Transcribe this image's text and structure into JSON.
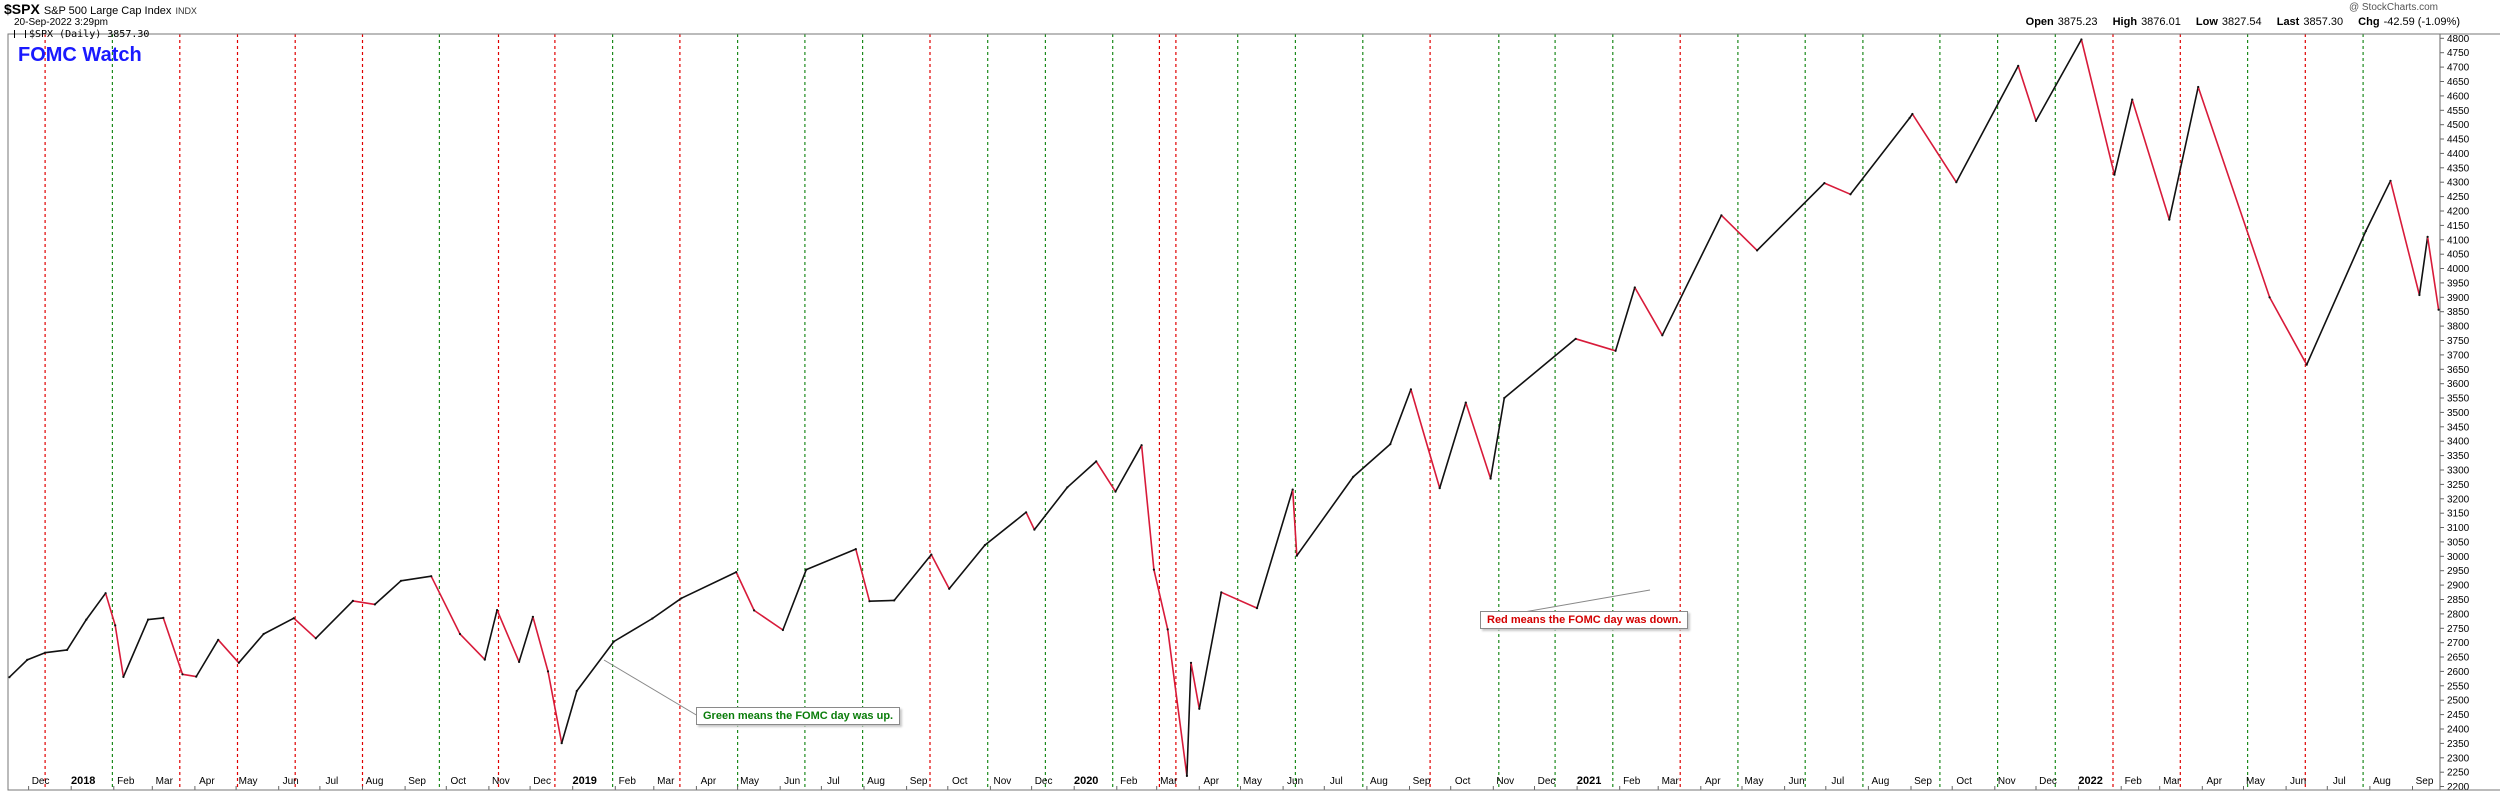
{
  "header": {
    "symbol": "$SPX",
    "name": "S&P 500 Large Cap Index",
    "exchange": "INDX",
    "datetime": "20-Sep-2022 3:29pm",
    "legend_text": "$SPX (Daily) 3857.30",
    "credit": "@ StockCharts.com",
    "ohlc": {
      "open_label": "Open",
      "open": "3875.23",
      "high_label": "High",
      "high": "3876.01",
      "low_label": "Low",
      "low": "3827.54",
      "last_label": "Last",
      "last": "3857.30",
      "chg_label": "Chg",
      "chg": "-42.59 (-1.09%)"
    }
  },
  "annotations": {
    "title": "FOMC Watch",
    "green_note": "Green means the FOMC day was up.",
    "red_note": "Red means the FOMC day was down."
  },
  "colors": {
    "up_line": "#1c8a1c",
    "down_line": "#e00000",
    "price_up": "#111111",
    "price_down": "#d81b3a",
    "grid": "#cccccc"
  },
  "chart_data": {
    "type": "line",
    "series": [
      {
        "values": [
          {
            "x": "2017-11-17",
            "y": 2580
          },
          {
            "x": "2017-11-30",
            "y": 2640
          },
          {
            "x": "2017-12-13",
            "y": 2665
          },
          {
            "x": "2017-12-29",
            "y": 2675
          },
          {
            "x": "2018-01-12",
            "y": 2780
          },
          {
            "x": "2018-01-26",
            "y": 2872
          },
          {
            "x": "2018-02-02",
            "y": 2760
          },
          {
            "x": "2018-02-08",
            "y": 2581
          },
          {
            "x": "2018-02-26",
            "y": 2780
          },
          {
            "x": "2018-03-09",
            "y": 2786
          },
          {
            "x": "2018-03-23",
            "y": 2590
          },
          {
            "x": "2018-04-02",
            "y": 2582
          },
          {
            "x": "2018-04-18",
            "y": 2710
          },
          {
            "x": "2018-05-03",
            "y": 2630
          },
          {
            "x": "2018-05-21",
            "y": 2730
          },
          {
            "x": "2018-06-12",
            "y": 2785
          },
          {
            "x": "2018-06-28",
            "y": 2715
          },
          {
            "x": "2018-07-25",
            "y": 2845
          },
          {
            "x": "2018-08-10",
            "y": 2833
          },
          {
            "x": "2018-08-29",
            "y": 2915
          },
          {
            "x": "2018-09-20",
            "y": 2931
          },
          {
            "x": "2018-10-11",
            "y": 2730
          },
          {
            "x": "2018-10-29",
            "y": 2641
          },
          {
            "x": "2018-11-07",
            "y": 2813
          },
          {
            "x": "2018-11-23",
            "y": 2633
          },
          {
            "x": "2018-12-03",
            "y": 2790
          },
          {
            "x": "2018-12-14",
            "y": 2600
          },
          {
            "x": "2018-12-24",
            "y": 2351
          },
          {
            "x": "2019-01-04",
            "y": 2532
          },
          {
            "x": "2019-01-31",
            "y": 2704
          },
          {
            "x": "2019-02-28",
            "y": 2784
          },
          {
            "x": "2019-03-21",
            "y": 2854
          },
          {
            "x": "2019-04-30",
            "y": 2945
          },
          {
            "x": "2019-05-13",
            "y": 2812
          },
          {
            "x": "2019-06-03",
            "y": 2744
          },
          {
            "x": "2019-06-20",
            "y": 2954
          },
          {
            "x": "2019-07-26",
            "y": 3025
          },
          {
            "x": "2019-08-05",
            "y": 2844
          },
          {
            "x": "2019-08-23",
            "y": 2847
          },
          {
            "x": "2019-09-19",
            "y": 3006
          },
          {
            "x": "2019-10-02",
            "y": 2887
          },
          {
            "x": "2019-10-28",
            "y": 3039
          },
          {
            "x": "2019-11-27",
            "y": 3153
          },
          {
            "x": "2019-12-03",
            "y": 3093
          },
          {
            "x": "2019-12-27",
            "y": 3240
          },
          {
            "x": "2020-01-17",
            "y": 3330
          },
          {
            "x": "2020-01-31",
            "y": 3225
          },
          {
            "x": "2020-02-19",
            "y": 3386
          },
          {
            "x": "2020-02-28",
            "y": 2954
          },
          {
            "x": "2020-03-09",
            "y": 2746
          },
          {
            "x": "2020-03-23",
            "y": 2237
          },
          {
            "x": "2020-03-26",
            "y": 2630
          },
          {
            "x": "2020-04-01",
            "y": 2470
          },
          {
            "x": "2020-04-17",
            "y": 2875
          },
          {
            "x": "2020-05-13",
            "y": 2820
          },
          {
            "x": "2020-06-08",
            "y": 3232
          },
          {
            "x": "2020-06-11",
            "y": 3002
          },
          {
            "x": "2020-07-22",
            "y": 3276
          },
          {
            "x": "2020-08-18",
            "y": 3390
          },
          {
            "x": "2020-09-02",
            "y": 3580
          },
          {
            "x": "2020-09-23",
            "y": 3237
          },
          {
            "x": "2020-10-12",
            "y": 3534
          },
          {
            "x": "2020-10-30",
            "y": 3270
          },
          {
            "x": "2020-11-09",
            "y": 3550
          },
          {
            "x": "2020-12-31",
            "y": 3756
          },
          {
            "x": "2021-01-29",
            "y": 3714
          },
          {
            "x": "2021-02-12",
            "y": 3934
          },
          {
            "x": "2021-03-04",
            "y": 3768
          },
          {
            "x": "2021-04-16",
            "y": 4185
          },
          {
            "x": "2021-05-12",
            "y": 4063
          },
          {
            "x": "2021-06-30",
            "y": 4297
          },
          {
            "x": "2021-07-19",
            "y": 4258
          },
          {
            "x": "2021-08-31",
            "y": 4523
          },
          {
            "x": "2021-09-02",
            "y": 4537
          },
          {
            "x": "2021-10-04",
            "y": 4300
          },
          {
            "x": "2021-11-18",
            "y": 4704
          },
          {
            "x": "2021-12-01",
            "y": 4513
          },
          {
            "x": "2022-01-03",
            "y": 4796
          },
          {
            "x": "2022-01-27",
            "y": 4326
          },
          {
            "x": "2022-02-09",
            "y": 4587
          },
          {
            "x": "2022-03-08",
            "y": 4170
          },
          {
            "x": "2022-03-29",
            "y": 4631
          },
          {
            "x": "2022-05-20",
            "y": 3900
          },
          {
            "x": "2022-06-16",
            "y": 3666
          },
          {
            "x": "2022-07-29",
            "y": 4130
          },
          {
            "x": "2022-08-16",
            "y": 4305
          },
          {
            "x": "2022-09-06",
            "y": 3908
          },
          {
            "x": "2022-09-12",
            "y": 4110
          },
          {
            "x": "2022-09-20",
            "y": 3857
          }
        ]
      }
    ],
    "fomc_days": {
      "up": [
        "2018-01-31",
        "2018-09-26",
        "2019-01-30",
        "2019-05-01",
        "2019-06-19",
        "2019-07-31",
        "2019-10-30",
        "2019-12-11",
        "2020-01-29",
        "2020-04-29",
        "2020-06-10",
        "2020-07-29",
        "2020-11-05",
        "2020-12-16",
        "2021-01-27",
        "2021-04-28",
        "2021-06-16",
        "2021-07-28",
        "2021-09-22",
        "2021-11-03",
        "2021-12-15",
        "2022-05-04",
        "2022-07-27"
      ],
      "down": [
        "2017-12-13",
        "2018-03-21",
        "2018-05-02",
        "2018-06-13",
        "2018-08-01",
        "2018-11-08",
        "2018-12-19",
        "2019-03-20",
        "2019-09-18",
        "2020-03-03",
        "2020-03-15",
        "2020-09-16",
        "2021-03-17",
        "2022-01-26",
        "2022-03-16",
        "2022-06-15"
      ]
    },
    "x_labels": [
      {
        "x": "2017-12-01",
        "label": "Dec"
      },
      {
        "x": "2018-01-01",
        "label": "2018"
      },
      {
        "x": "2018-02-01",
        "label": "Feb"
      },
      {
        "x": "2018-03-01",
        "label": "Mar"
      },
      {
        "x": "2018-04-01",
        "label": "Apr"
      },
      {
        "x": "2018-05-01",
        "label": "May"
      },
      {
        "x": "2018-06-01",
        "label": "Jun"
      },
      {
        "x": "2018-07-01",
        "label": "Jul"
      },
      {
        "x": "2018-08-01",
        "label": "Aug"
      },
      {
        "x": "2018-09-01",
        "label": "Sep"
      },
      {
        "x": "2018-10-01",
        "label": "Oct"
      },
      {
        "x": "2018-11-01",
        "label": "Nov"
      },
      {
        "x": "2018-12-01",
        "label": "Dec"
      },
      {
        "x": "2019-01-01",
        "label": "2019"
      },
      {
        "x": "2019-02-01",
        "label": "Feb"
      },
      {
        "x": "2019-03-01",
        "label": "Mar"
      },
      {
        "x": "2019-04-01",
        "label": "Apr"
      },
      {
        "x": "2019-05-01",
        "label": "May"
      },
      {
        "x": "2019-06-01",
        "label": "Jun"
      },
      {
        "x": "2019-07-01",
        "label": "Jul"
      },
      {
        "x": "2019-08-01",
        "label": "Aug"
      },
      {
        "x": "2019-09-01",
        "label": "Sep"
      },
      {
        "x": "2019-10-01",
        "label": "Oct"
      },
      {
        "x": "2019-11-01",
        "label": "Nov"
      },
      {
        "x": "2019-12-01",
        "label": "Dec"
      },
      {
        "x": "2020-01-01",
        "label": "2020"
      },
      {
        "x": "2020-02-01",
        "label": "Feb"
      },
      {
        "x": "2020-03-01",
        "label": "Mar"
      },
      {
        "x": "2020-04-01",
        "label": "Apr"
      },
      {
        "x": "2020-05-01",
        "label": "May"
      },
      {
        "x": "2020-06-01",
        "label": "Jun"
      },
      {
        "x": "2020-07-01",
        "label": "Jul"
      },
      {
        "x": "2020-08-01",
        "label": "Aug"
      },
      {
        "x": "2020-09-01",
        "label": "Sep"
      },
      {
        "x": "2020-10-01",
        "label": "Oct"
      },
      {
        "x": "2020-11-01",
        "label": "Nov"
      },
      {
        "x": "2020-12-01",
        "label": "Dec"
      },
      {
        "x": "2021-01-01",
        "label": "2021"
      },
      {
        "x": "2021-02-01",
        "label": "Feb"
      },
      {
        "x": "2021-03-01",
        "label": "Mar"
      },
      {
        "x": "2021-04-01",
        "label": "Apr"
      },
      {
        "x": "2021-05-01",
        "label": "May"
      },
      {
        "x": "2021-06-01",
        "label": "Jun"
      },
      {
        "x": "2021-07-01",
        "label": "Jul"
      },
      {
        "x": "2021-08-01",
        "label": "Aug"
      },
      {
        "x": "2021-09-01",
        "label": "Sep"
      },
      {
        "x": "2021-10-01",
        "label": "Oct"
      },
      {
        "x": "2021-11-01",
        "label": "Nov"
      },
      {
        "x": "2021-12-01",
        "label": "Dec"
      },
      {
        "x": "2022-01-01",
        "label": "2022"
      },
      {
        "x": "2022-02-01",
        "label": "Feb"
      },
      {
        "x": "2022-03-01",
        "label": "Mar"
      },
      {
        "x": "2022-04-01",
        "label": "Apr"
      },
      {
        "x": "2022-05-01",
        "label": "May"
      },
      {
        "x": "2022-06-01",
        "label": "Jun"
      },
      {
        "x": "2022-07-01",
        "label": "Jul"
      },
      {
        "x": "2022-08-01",
        "label": "Aug"
      },
      {
        "x": "2022-09-01",
        "label": "Sep"
      }
    ],
    "y_ticks": [
      2200,
      2250,
      2300,
      2350,
      2400,
      2450,
      2500,
      2550,
      2600,
      2650,
      2700,
      2750,
      2800,
      2850,
      2900,
      2950,
      3000,
      3050,
      3100,
      3150,
      3200,
      3250,
      3300,
      3350,
      3400,
      3450,
      3500,
      3550,
      3600,
      3650,
      3700,
      3750,
      3800,
      3850,
      3900,
      3950,
      4000,
      4050,
      4100,
      4150,
      4200,
      4250,
      4300,
      4350,
      4400,
      4450,
      4500,
      4550,
      4600,
      4650,
      4700,
      4750,
      4800
    ],
    "x_range": [
      "2017-11-16",
      "2022-09-21"
    ],
    "ylim": [
      2188,
      4815
    ],
    "y_axis_position": "right",
    "grid": false
  }
}
